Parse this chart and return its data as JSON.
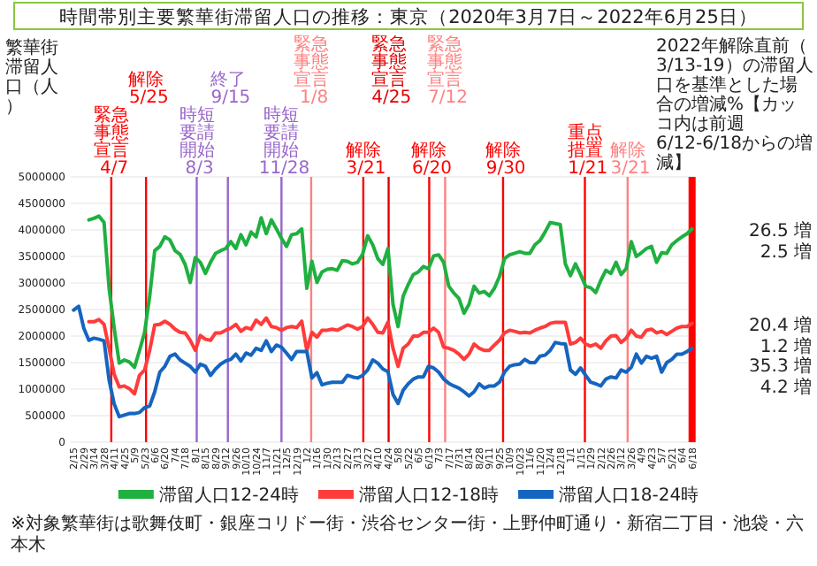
{
  "chart_data": {
    "type": "line",
    "title": "時間帯別主要繁華街滞留人口の推移：東京（2020年3月7日～2022年6月25日）",
    "ylabel": "繁華街滞留人口（人）",
    "x": [
      "2020-02-15",
      "2020-02-22",
      "2020-02-29",
      "2020-03-07",
      "2020-03-14",
      "2020-03-21",
      "2020-03-28",
      "2020-04-04",
      "2020-04-11",
      "2020-04-18",
      "2020-04-25",
      "2020-05-02",
      "2020-05-09",
      "2020-05-16",
      "2020-05-23",
      "2020-05-30",
      "2020-06-06",
      "2020-06-13",
      "2020-06-20",
      "2020-06-27",
      "2020-07-04",
      "2020-07-11",
      "2020-07-18",
      "2020-07-25",
      "2020-08-01",
      "2020-08-08",
      "2020-08-15",
      "2020-08-22",
      "2020-08-29",
      "2020-09-05",
      "2020-09-12",
      "2020-09-19",
      "2020-09-26",
      "2020-10-03",
      "2020-10-10",
      "2020-10-17",
      "2020-10-24",
      "2020-10-31",
      "2020-11-07",
      "2020-11-14",
      "2020-11-21",
      "2020-11-28",
      "2020-12-05",
      "2020-12-12",
      "2020-12-19",
      "2020-12-26",
      "2021-01-02",
      "2021-01-09",
      "2021-01-16",
      "2021-01-23",
      "2021-01-30",
      "2021-02-06",
      "2021-02-13",
      "2021-02-20",
      "2021-02-27",
      "2021-03-06",
      "2021-03-13",
      "2021-03-20",
      "2021-03-27",
      "2021-04-03",
      "2021-04-10",
      "2021-04-17",
      "2021-04-24",
      "2021-05-01",
      "2021-05-08",
      "2021-05-15",
      "2021-05-22",
      "2021-05-29",
      "2021-06-05",
      "2021-06-12",
      "2021-06-19",
      "2021-06-26",
      "2021-07-03",
      "2021-07-10",
      "2021-07-17",
      "2021-07-24",
      "2021-07-31",
      "2021-08-07",
      "2021-08-14",
      "2021-08-21",
      "2021-08-28",
      "2021-09-04",
      "2021-09-11",
      "2021-09-18",
      "2021-09-25",
      "2021-10-02",
      "2021-10-09",
      "2021-10-16",
      "2021-10-23",
      "2021-10-30",
      "2021-11-06",
      "2021-11-13",
      "2021-11-20",
      "2021-11-27",
      "2021-12-04",
      "2021-12-11",
      "2021-12-18",
      "2021-12-25",
      "2022-01-01",
      "2022-01-08",
      "2022-01-15",
      "2022-01-22",
      "2022-01-29",
      "2022-02-05",
      "2022-02-12",
      "2022-02-19",
      "2022-02-26",
      "2022-03-05",
      "2022-03-12",
      "2022-03-19",
      "2022-03-26",
      "2022-04-02",
      "2022-04-09",
      "2022-04-16",
      "2022-04-23",
      "2022-04-30",
      "2022-05-07",
      "2022-05-14",
      "2022-05-21",
      "2022-05-28",
      "2022-06-04",
      "2022-06-11",
      "2022-06-18"
    ],
    "series": [
      {
        "name": "滞留人口12-24時",
        "color": "#1fb040",
        "values": [
          null,
          null,
          null,
          4190000,
          4220000,
          4260000,
          4140000,
          2900000,
          2150000,
          1490000,
          1550000,
          1510000,
          1410000,
          1730000,
          2070000,
          2750000,
          3610000,
          3690000,
          3870000,
          3810000,
          3610000,
          3540000,
          3350000,
          3010000,
          3480000,
          3390000,
          3180000,
          3390000,
          3560000,
          3610000,
          3650000,
          3780000,
          3650000,
          3910000,
          3720000,
          3960000,
          3870000,
          4230000,
          3930000,
          4190000,
          4020000,
          3840000,
          3690000,
          3910000,
          3930000,
          4020000,
          2900000,
          3410000,
          3010000,
          3210000,
          3260000,
          3270000,
          3240000,
          3420000,
          3410000,
          3360000,
          3390000,
          3540000,
          3890000,
          3720000,
          3460000,
          3350000,
          3650000,
          2600000,
          2180000,
          2750000,
          2970000,
          3160000,
          3210000,
          3310000,
          3270000,
          3510000,
          3530000,
          3390000,
          2940000,
          2810000,
          2710000,
          2430000,
          2600000,
          2940000,
          2810000,
          2840000,
          2760000,
          2900000,
          3120000,
          3460000,
          3530000,
          3560000,
          3590000,
          3560000,
          3560000,
          3720000,
          3800000,
          3960000,
          4140000,
          4120000,
          4100000,
          3360000,
          3140000,
          3360000,
          3160000,
          2940000,
          2910000,
          2820000,
          3050000,
          3240000,
          3180000,
          3390000,
          3160000,
          3270000,
          3780000,
          3500000,
          3570000,
          3650000,
          3690000,
          3390000,
          3570000,
          3560000,
          3720000,
          3800000,
          3870000,
          3930000,
          4020000
        ]
      },
      {
        "name": "滞留人口12-18時",
        "color": "#ff3b3b",
        "values": [
          null,
          null,
          null,
          2270000,
          2270000,
          2310000,
          2220000,
          1770000,
          1280000,
          1040000,
          1060000,
          1010000,
          910000,
          1260000,
          1360000,
          1730000,
          2210000,
          2220000,
          2280000,
          2220000,
          2130000,
          2070000,
          2060000,
          1920000,
          1730000,
          2010000,
          1940000,
          1920000,
          2060000,
          2060000,
          2110000,
          2150000,
          2220000,
          2090000,
          2160000,
          2130000,
          2300000,
          2220000,
          2340000,
          2180000,
          2160000,
          2110000,
          2160000,
          2180000,
          2160000,
          2280000,
          1730000,
          2070000,
          1980000,
          2110000,
          2110000,
          2130000,
          2110000,
          2160000,
          2210000,
          2180000,
          2130000,
          2180000,
          2340000,
          2220000,
          2070000,
          2060000,
          2260000,
          1770000,
          1430000,
          1770000,
          1850000,
          2000000,
          2000000,
          2070000,
          2070000,
          2150000,
          2070000,
          1790000,
          1770000,
          1730000,
          1660000,
          1560000,
          1660000,
          1850000,
          1770000,
          1730000,
          1730000,
          1830000,
          1920000,
          2060000,
          2110000,
          2090000,
          2060000,
          2070000,
          2060000,
          2110000,
          2150000,
          2180000,
          2240000,
          2260000,
          2260000,
          2260000,
          1850000,
          1880000,
          1960000,
          1850000,
          1810000,
          1850000,
          1770000,
          1910000,
          2000000,
          2010000,
          1880000,
          1960000,
          2110000,
          2000000,
          1980000,
          2110000,
          2130000,
          2060000,
          2090000,
          2030000,
          2090000,
          2150000,
          2180000,
          2180000,
          2240000
        ]
      },
      {
        "name": "滞留人口18-24時",
        "color": "#1565c0",
        "values": [
          2490000,
          2560000,
          2150000,
          1920000,
          1960000,
          1940000,
          1910000,
          1170000,
          720000,
          480000,
          510000,
          540000,
          540000,
          560000,
          650000,
          680000,
          950000,
          1320000,
          1430000,
          1620000,
          1660000,
          1550000,
          1490000,
          1430000,
          1320000,
          1470000,
          1430000,
          1260000,
          1380000,
          1470000,
          1530000,
          1560000,
          1660000,
          1530000,
          1680000,
          1640000,
          1770000,
          1730000,
          1910000,
          1710000,
          1830000,
          1790000,
          1680000,
          1560000,
          1710000,
          1710000,
          1710000,
          1210000,
          1310000,
          1080000,
          1110000,
          1130000,
          1130000,
          1130000,
          1260000,
          1230000,
          1210000,
          1260000,
          1360000,
          1550000,
          1490000,
          1380000,
          1330000,
          900000,
          730000,
          980000,
          1100000,
          1190000,
          1230000,
          1230000,
          1430000,
          1400000,
          1320000,
          1190000,
          1110000,
          1060000,
          1020000,
          950000,
          870000,
          950000,
          1100000,
          1020000,
          1060000,
          1060000,
          1130000,
          1320000,
          1430000,
          1460000,
          1470000,
          1560000,
          1500000,
          1500000,
          1620000,
          1640000,
          1730000,
          1880000,
          1860000,
          1850000,
          1360000,
          1280000,
          1400000,
          1260000,
          1130000,
          1100000,
          1060000,
          1190000,
          1230000,
          1210000,
          1360000,
          1320000,
          1410000,
          1660000,
          1490000,
          1620000,
          1580000,
          1620000,
          1320000,
          1500000,
          1560000,
          1660000,
          1660000,
          1710000,
          1770000
        ]
      }
    ],
    "xlim": [
      "2020-02-11",
      "2022-06-22"
    ],
    "ylim": [
      0,
      5000000
    ],
    "yticks": [
      0,
      500000,
      1000000,
      1500000,
      2000000,
      2500000,
      3000000,
      3500000,
      4000000,
      4500000,
      5000000
    ],
    "xticks": [
      {
        "value": "2020-02-15",
        "label": "2/15"
      },
      {
        "value": "2020-02-29",
        "label": "2/29"
      },
      {
        "value": "2020-03-14",
        "label": "3/14"
      },
      {
        "value": "2020-03-28",
        "label": "3/28"
      },
      {
        "value": "2020-04-11",
        "label": "4/11"
      },
      {
        "value": "2020-04-25",
        "label": "4/25"
      },
      {
        "value": "2020-05-09",
        "label": "5/9"
      },
      {
        "value": "2020-05-23",
        "label": "5/23"
      },
      {
        "value": "2020-06-06",
        "label": "6/6"
      },
      {
        "value": "2020-06-20",
        "label": "6/20"
      },
      {
        "value": "2020-07-04",
        "label": "7/4"
      },
      {
        "value": "2020-07-18",
        "label": "7/18"
      },
      {
        "value": "2020-08-01",
        "label": "8/1"
      },
      {
        "value": "2020-08-15",
        "label": "8/15"
      },
      {
        "value": "2020-08-29",
        "label": "8/29"
      },
      {
        "value": "2020-09-12",
        "label": "9/12"
      },
      {
        "value": "2020-09-26",
        "label": "9/26"
      },
      {
        "value": "2020-10-10",
        "label": "10/10"
      },
      {
        "value": "2020-10-24",
        "label": "10/24"
      },
      {
        "value": "2020-11-07",
        "label": "11/7"
      },
      {
        "value": "2020-11-21",
        "label": "11/21"
      },
      {
        "value": "2020-12-05",
        "label": "12/5"
      },
      {
        "value": "2020-12-19",
        "label": "12/19"
      },
      {
        "value": "2021-01-02",
        "label": "1/2"
      },
      {
        "value": "2021-01-16",
        "label": "1/16"
      },
      {
        "value": "2021-01-30",
        "label": "1/30"
      },
      {
        "value": "2021-02-13",
        "label": "2/13"
      },
      {
        "value": "2021-02-27",
        "label": "2/27"
      },
      {
        "value": "2021-03-13",
        "label": "3/13"
      },
      {
        "value": "2021-03-27",
        "label": "3/27"
      },
      {
        "value": "2021-04-10",
        "label": "4/10"
      },
      {
        "value": "2021-04-24",
        "label": "4/24"
      },
      {
        "value": "2021-05-08",
        "label": "5/8"
      },
      {
        "value": "2021-05-22",
        "label": "5/22"
      },
      {
        "value": "2021-06-05",
        "label": "6/5"
      },
      {
        "value": "2021-06-19",
        "label": "6/19"
      },
      {
        "value": "2021-07-03",
        "label": "7/3"
      },
      {
        "value": "2021-07-17",
        "label": "7/17"
      },
      {
        "value": "2021-07-31",
        "label": "7/31"
      },
      {
        "value": "2021-08-14",
        "label": "8/14"
      },
      {
        "value": "2021-08-28",
        "label": "8/28"
      },
      {
        "value": "2021-09-11",
        "label": "9/11"
      },
      {
        "value": "2021-09-25",
        "label": "9/25"
      },
      {
        "value": "2021-10-09",
        "label": "10/9"
      },
      {
        "value": "2021-10-23",
        "label": "10/23"
      },
      {
        "value": "2021-11-06",
        "label": "11/6"
      },
      {
        "value": "2021-11-20",
        "label": "11/20"
      },
      {
        "value": "2021-12-04",
        "label": "12/4"
      },
      {
        "value": "2021-12-18",
        "label": "12/18"
      },
      {
        "value": "2022-01-01",
        "label": "1/1"
      },
      {
        "value": "2022-01-15",
        "label": "1/15"
      },
      {
        "value": "2022-01-29",
        "label": "1/29"
      },
      {
        "value": "2022-02-12",
        "label": "2/12"
      },
      {
        "value": "2022-02-26",
        "label": "2/26"
      },
      {
        "value": "2022-03-12",
        "label": "3/12"
      },
      {
        "value": "2022-03-26",
        "label": "3/26"
      },
      {
        "value": "2022-04-09",
        "label": "4/9"
      },
      {
        "value": "2022-04-23",
        "label": "4/23"
      },
      {
        "value": "2022-05-07",
        "label": "5/7"
      },
      {
        "value": "2022-05-21",
        "label": "5/21"
      },
      {
        "value": "2022-06-04",
        "label": "6/4"
      },
      {
        "value": "2022-06-18",
        "label": "6/18"
      }
    ],
    "grid": "y",
    "legend": "bottom",
    "marker": "none",
    "ref_lines": [
      {
        "axis": "x",
        "value": "2020-04-07",
        "label": "緊急事態宣言 4/7",
        "color": "#ff0000"
      },
      {
        "axis": "x",
        "value": "2020-05-25",
        "label": "解除 5/25",
        "color": "#ff0000"
      },
      {
        "axis": "x",
        "value": "2020-08-03",
        "label": "時短要請開始 8/3",
        "color": "#9966cc"
      },
      {
        "axis": "x",
        "value": "2020-09-15",
        "label": "終了 9/15",
        "color": "#9966cc"
      },
      {
        "axis": "x",
        "value": "2020-11-28",
        "label": "時短要請開始 11/28",
        "color": "#9966cc"
      },
      {
        "axis": "x",
        "value": "2021-01-08",
        "label": "緊急事態宣言 1/8",
        "color": "#ff8080"
      },
      {
        "axis": "x",
        "value": "2021-03-21",
        "label": "解除 3/21",
        "color": "#ff0000"
      },
      {
        "axis": "x",
        "value": "2021-04-25",
        "label": "緊急事態宣言 4/25",
        "color": "#e00000"
      },
      {
        "axis": "x",
        "value": "2021-06-20",
        "label": "解除 6/20",
        "color": "#ff0000"
      },
      {
        "axis": "x",
        "value": "2021-07-12",
        "label": "緊急事態宣言 7/12",
        "color": "#ff8080"
      },
      {
        "axis": "x",
        "value": "2021-09-30",
        "label": "解除 9/30",
        "color": "#ff0000"
      },
      {
        "axis": "x",
        "value": "2022-01-21",
        "label": "重点措置 1/21",
        "color": "#ff0000"
      },
      {
        "axis": "x",
        "value": "2022-03-21",
        "label": "解除 3/21",
        "color": "#ff8080"
      },
      {
        "axis": "x",
        "value": "2022-06-18",
        "color": "#ff0000"
      }
    ],
    "annotations": [
      "※対象繁華街は歌舞伎町・銀座コリドー街・渋谷センター街・上野仲町通り・新宿二丁目・池袋・六本木",
      "2022年解除直前（3/13-19）の滞留人口を基準とした場合の増減%【カッコ内は前週6/12-6/18からの増減】",
      "26.5 増",
      "2.5 増",
      "20.4 増",
      "1.2 増",
      "35.3 増",
      "4.2 増"
    ]
  }
}
